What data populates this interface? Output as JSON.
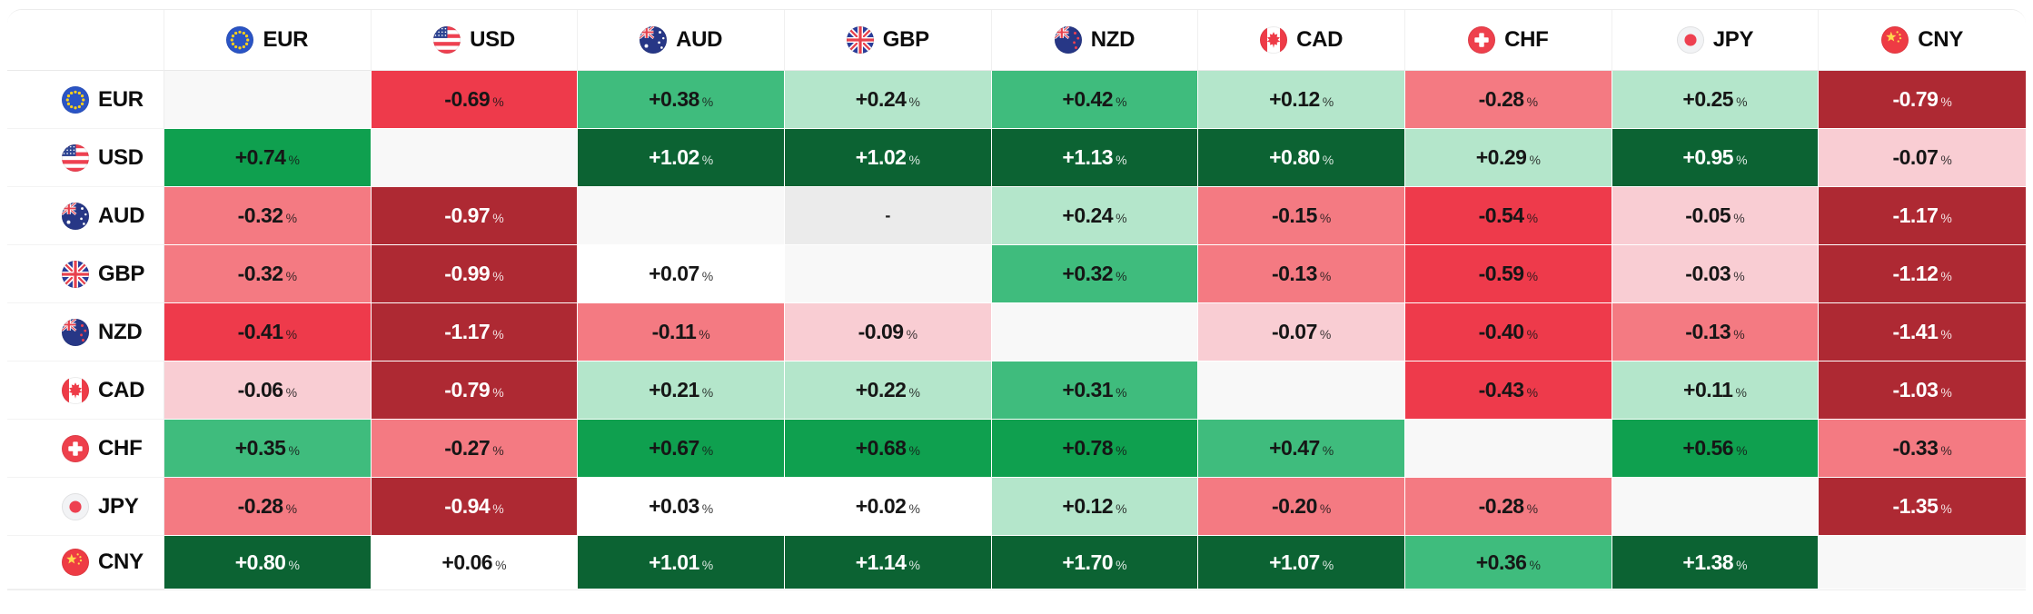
{
  "widget": {
    "name": "currency-strength-matrix",
    "unit_suffix": "%",
    "missing_placeholder": "-"
  },
  "currencies": [
    {
      "code": "EUR",
      "flag_icon": "eur-flag-icon"
    },
    {
      "code": "USD",
      "flag_icon": "usd-flag-icon"
    },
    {
      "code": "AUD",
      "flag_icon": "aud-flag-icon"
    },
    {
      "code": "GBP",
      "flag_icon": "gbp-flag-icon"
    },
    {
      "code": "NZD",
      "flag_icon": "nzd-flag-icon"
    },
    {
      "code": "CAD",
      "flag_icon": "cad-flag-icon"
    },
    {
      "code": "CHF",
      "flag_icon": "chf-flag-icon"
    },
    {
      "code": "JPY",
      "flag_icon": "jpy-flag-icon"
    },
    {
      "code": "CNY",
      "flag_icon": "cny-flag-icon"
    }
  ],
  "chart_data": {
    "type": "heatmap",
    "unit": "%",
    "columns": [
      "EUR",
      "USD",
      "AUD",
      "GBP",
      "NZD",
      "CAD",
      "CHF",
      "JPY",
      "CNY"
    ],
    "rows": [
      "EUR",
      "USD",
      "AUD",
      "GBP",
      "NZD",
      "CAD",
      "CHF",
      "JPY",
      "CNY"
    ],
    "values": [
      [
        null,
        "-0.69",
        "+0.38",
        "+0.24",
        "+0.42",
        "+0.12",
        "-0.28",
        "+0.25",
        "-0.79"
      ],
      [
        "+0.74",
        null,
        "+1.02",
        "+1.02",
        "+1.13",
        "+0.80",
        "+0.29",
        "+0.95",
        "-0.07"
      ],
      [
        "-0.32",
        "-0.97",
        null,
        "-",
        "+0.24",
        "-0.15",
        "-0.54",
        "-0.05",
        "-1.17"
      ],
      [
        "-0.32",
        "-0.99",
        "+0.07",
        null,
        "+0.32",
        "-0.13",
        "-0.59",
        "-0.03",
        "-1.12"
      ],
      [
        "-0.41",
        "-1.17",
        "-0.11",
        "-0.09",
        null,
        "-0.07",
        "-0.40",
        "-0.13",
        "-1.41"
      ],
      [
        "-0.06",
        "-0.79",
        "+0.21",
        "+0.22",
        "+0.31",
        null,
        "-0.43",
        "+0.11",
        "-1.03"
      ],
      [
        "+0.35",
        "-0.27",
        "+0.67",
        "+0.68",
        "+0.78",
        "+0.47",
        null,
        "+0.56",
        "-0.33"
      ],
      [
        "-0.28",
        "-0.94",
        "+0.03",
        "+0.02",
        "+0.12",
        "-0.20",
        "-0.28",
        null,
        "-1.35"
      ],
      [
        "+0.80",
        "+0.06",
        "+1.01",
        "+1.14",
        "+1.70",
        "+1.07",
        "+0.36",
        "+1.38",
        null
      ]
    ]
  },
  "palette": {
    "pos_4_dark": "#0c6333",
    "pos_3_strong": "#0fa04f",
    "pos_2_medium": "#3fbc7d",
    "pos_1_light": "#b4e6cb",
    "flat_white": "#ffffff",
    "neg_1_faint": "#f9cdd3",
    "neg_2_salmon": "#f47a82",
    "neg_3_bright": "#ee3a4b",
    "neg_4_dark": "#ae2933",
    "diagonal_bg": "#f8f8f8",
    "missing_bg": "#ebebeb",
    "text_dark": "#161616",
    "text_light": "#ffffff"
  }
}
